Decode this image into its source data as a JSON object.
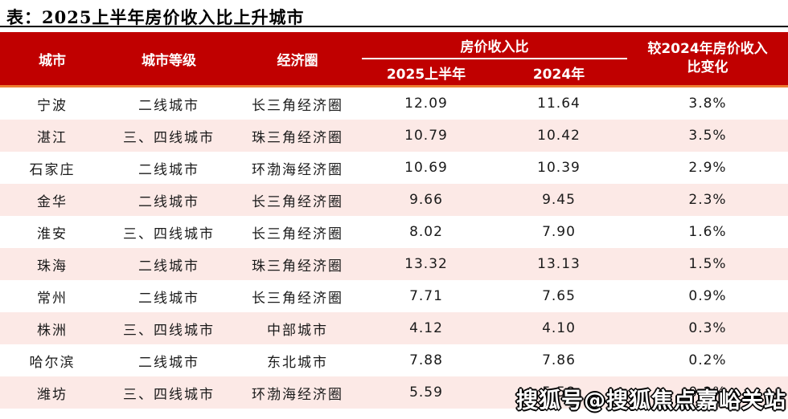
{
  "title": "表：2025上半年房价收入比上升城市",
  "colors": {
    "header_red": "#c00000",
    "orange_line": "#ed7d31",
    "row_pink": "#fce9e6",
    "text_dark": "#1a1a1a"
  },
  "table": {
    "columns": {
      "city": "城市",
      "tier": "城市等级",
      "circle": "经济圈",
      "ratio_group": "房价收入比",
      "h1_2025": "2025上半年",
      "y2024": "2024年",
      "change_line1": "较2024年房价收入",
      "change_line2": "比变化"
    },
    "row_keys": [
      "city",
      "tier",
      "circle",
      "h1_2025",
      "y2024",
      "change"
    ],
    "rows": [
      {
        "city": "宁波",
        "tier": "二线城市",
        "circle": "长三角经济圈",
        "h1_2025": "12.09",
        "y2024": "11.64",
        "change": "3.8%"
      },
      {
        "city": "湛江",
        "tier": "三、四线城市",
        "circle": "珠三角经济圈",
        "h1_2025": "10.79",
        "y2024": "10.42",
        "change": "3.5%"
      },
      {
        "city": "石家庄",
        "tier": "二线城市",
        "circle": "环渤海经济圈",
        "h1_2025": "10.69",
        "y2024": "10.39",
        "change": "2.9%"
      },
      {
        "city": "金华",
        "tier": "二线城市",
        "circle": "长三角经济圈",
        "h1_2025": "9.66",
        "y2024": "9.45",
        "change": "2.3%"
      },
      {
        "city": "淮安",
        "tier": "三、四线城市",
        "circle": "长三角经济圈",
        "h1_2025": "8.02",
        "y2024": "7.90",
        "change": "1.6%"
      },
      {
        "city": "珠海",
        "tier": "二线城市",
        "circle": "珠三角经济圈",
        "h1_2025": "13.32",
        "y2024": "13.13",
        "change": "1.5%"
      },
      {
        "city": "常州",
        "tier": "二线城市",
        "circle": "长三角经济圈",
        "h1_2025": "7.71",
        "y2024": "7.65",
        "change": "0.9%"
      },
      {
        "city": "株洲",
        "tier": "三、四线城市",
        "circle": "中部城市",
        "h1_2025": "4.12",
        "y2024": "4.10",
        "change": "0.3%"
      },
      {
        "city": "哈尔滨",
        "tier": "二线城市",
        "circle": "东北城市",
        "h1_2025": "7.88",
        "y2024": "7.86",
        "change": "0.2%"
      },
      {
        "city": "潍坊",
        "tier": "三、四线城市",
        "circle": "环渤海经济圈",
        "h1_2025": "5.59",
        "y2024": "5.58",
        "change": "0.2%"
      }
    ]
  },
  "watermark": "搜狐号@搜狐焦点嘉峪关站"
}
